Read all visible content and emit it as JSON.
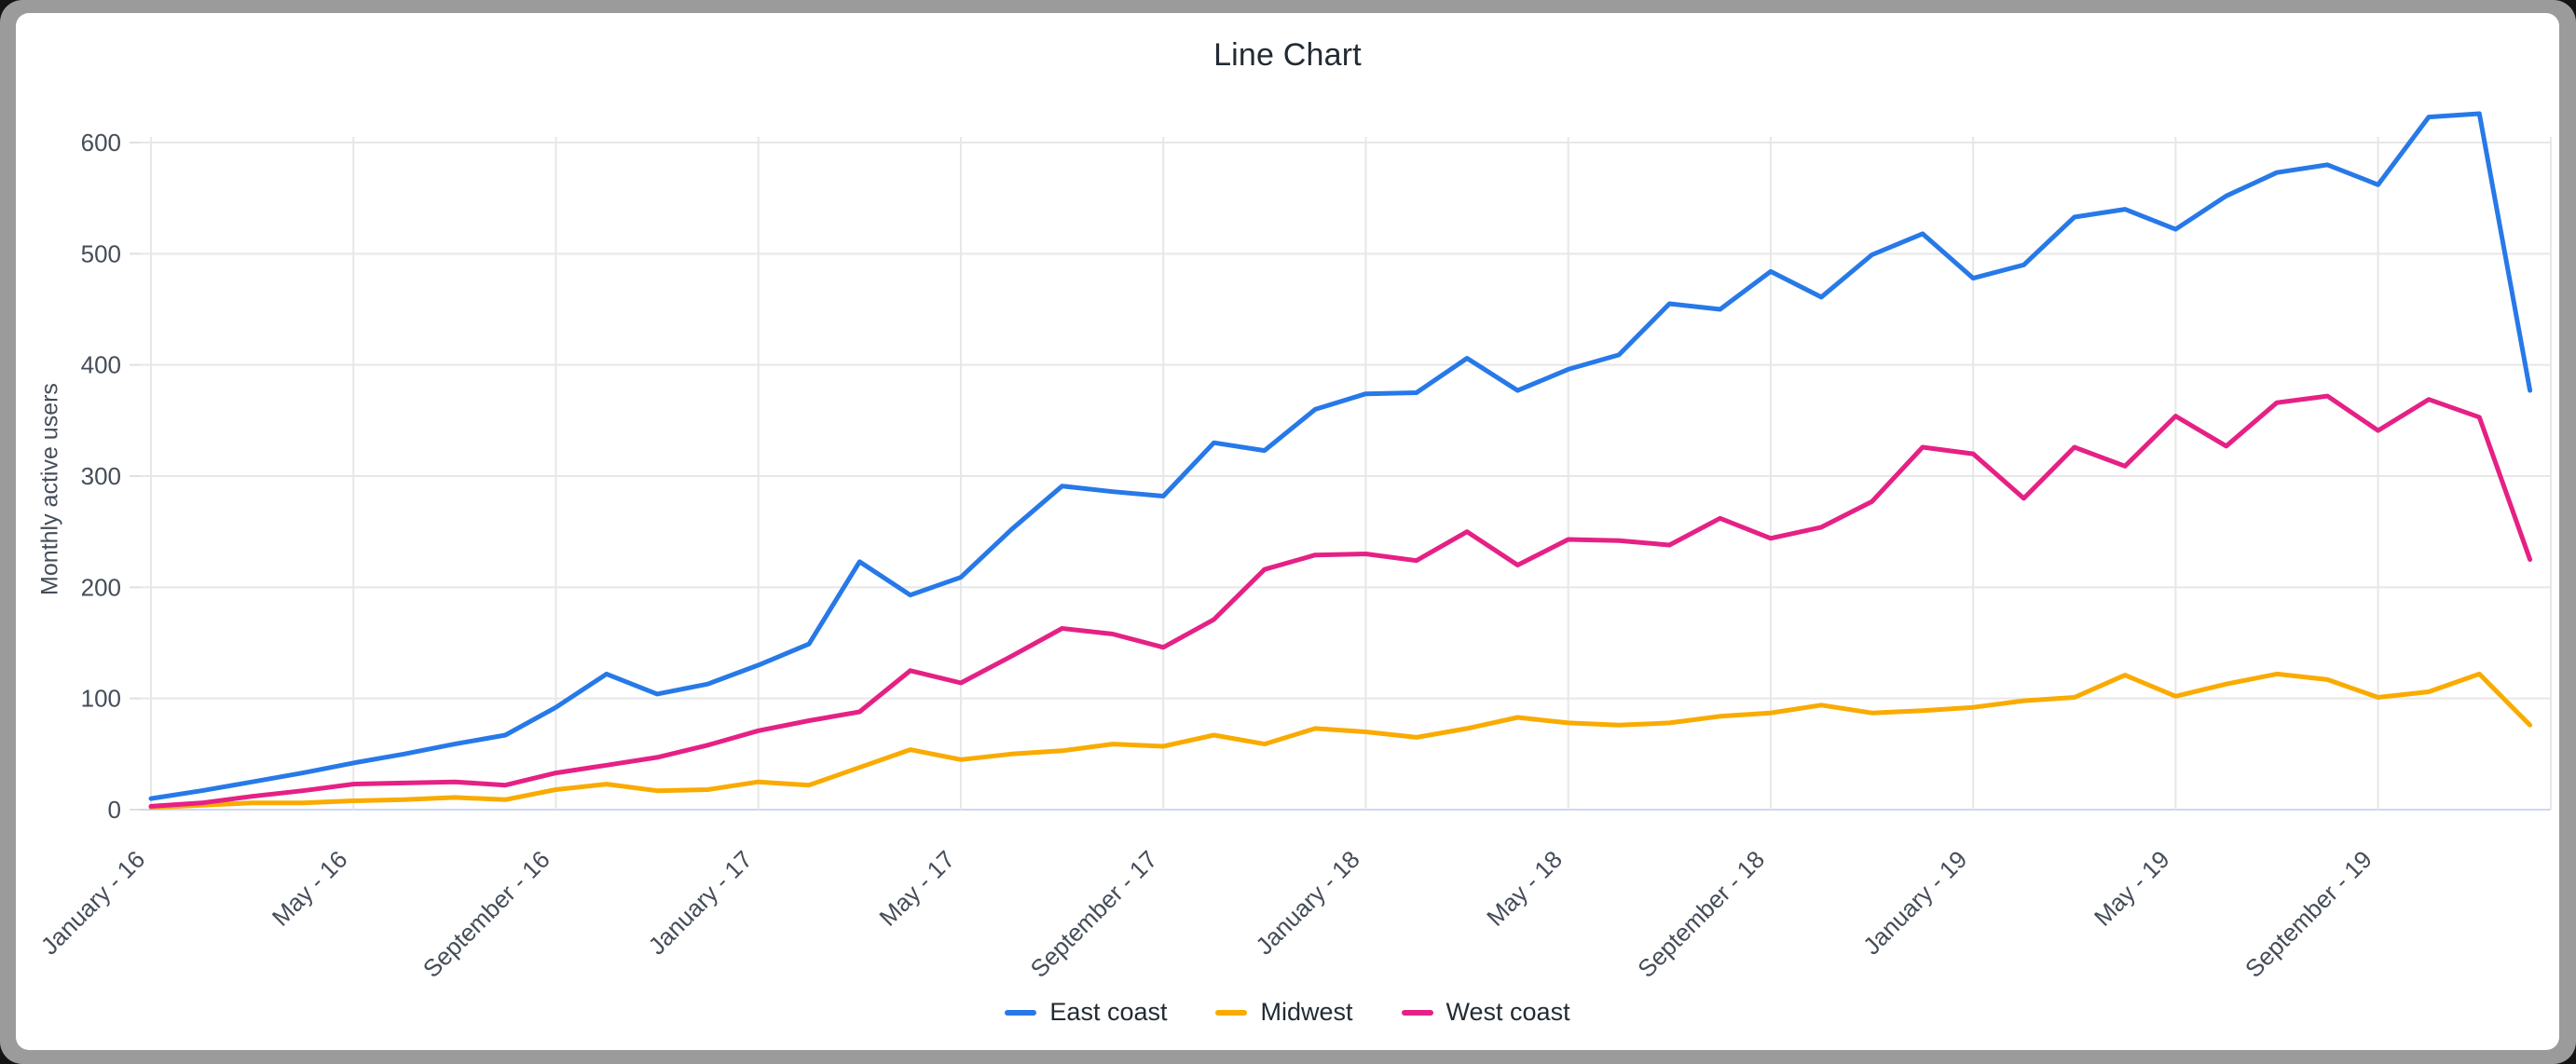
{
  "page": {
    "title": "Line Chart"
  },
  "chart_data": {
    "type": "line",
    "title": "Line Chart",
    "xlabel": "",
    "ylabel": "Monthly active users",
    "ylim": [
      0,
      650
    ],
    "yticks": [
      0,
      100,
      200,
      300,
      400,
      500,
      600
    ],
    "grid": true,
    "legend_position": "bottom",
    "x_tick_every": 4,
    "x_tick_labels": [
      "January - 16",
      "May - 16",
      "September - 16",
      "January - 17",
      "May - 17",
      "September - 17",
      "January - 18",
      "May - 18",
      "September - 18",
      "January - 19",
      "May - 19",
      "September - 19"
    ],
    "categories": [
      "January - 16",
      "February - 16",
      "March - 16",
      "April - 16",
      "May - 16",
      "June - 16",
      "July - 16",
      "August - 16",
      "September - 16",
      "October - 16",
      "November - 16",
      "December - 16",
      "January - 17",
      "February - 17",
      "March - 17",
      "April - 17",
      "May - 17",
      "June - 17",
      "July - 17",
      "August - 17",
      "September - 17",
      "October - 17",
      "November - 17",
      "December - 17",
      "January - 18",
      "February - 18",
      "March - 18",
      "April - 18",
      "May - 18",
      "June - 18",
      "July - 18",
      "August - 18",
      "September - 18",
      "October - 18",
      "November - 18",
      "December - 18",
      "January - 19",
      "February - 19",
      "March - 19",
      "April - 19",
      "May - 19",
      "June - 19",
      "July - 19",
      "August - 19",
      "September - 19",
      "October - 19",
      "November - 19",
      "December - 19"
    ],
    "series": [
      {
        "name": "East coast",
        "color": "#2779e8",
        "values": [
          10,
          17,
          25,
          33,
          42,
          50,
          59,
          67,
          92,
          122,
          104,
          113,
          130,
          149,
          223,
          193,
          209,
          252,
          291,
          286,
          282,
          330,
          323,
          360,
          374,
          375,
          406,
          377,
          396,
          409,
          455,
          450,
          484,
          461,
          499,
          518,
          478,
          490,
          533,
          540,
          522,
          552,
          573,
          580,
          562,
          623,
          626,
          377
        ]
      },
      {
        "name": "Midwest",
        "color": "#f9ab00",
        "values": [
          2,
          4,
          6,
          6,
          8,
          9,
          11,
          9,
          18,
          23,
          17,
          18,
          25,
          22,
          38,
          54,
          45,
          50,
          53,
          59,
          57,
          67,
          59,
          73,
          70,
          65,
          73,
          83,
          78,
          76,
          78,
          84,
          87,
          94,
          87,
          89,
          92,
          98,
          101,
          121,
          102,
          113,
          122,
          117,
          101,
          106,
          122,
          76
        ]
      },
      {
        "name": "West coast",
        "color": "#e52185",
        "values": [
          3,
          6,
          12,
          17,
          23,
          24,
          25,
          22,
          33,
          40,
          47,
          58,
          71,
          80,
          88,
          125,
          114,
          138,
          163,
          158,
          146,
          171,
          216,
          229,
          230,
          224,
          250,
          220,
          243,
          242,
          238,
          262,
          244,
          254,
          277,
          326,
          320,
          280,
          326,
          309,
          354,
          327,
          366,
          372,
          341,
          369,
          353,
          225
        ]
      }
    ],
    "colors": {
      "gridline": "#e7e7e7",
      "baseline": "#ccd9ee",
      "tick_stub": "#e0e0e0",
      "tick_text": "#454d59",
      "title_text": "#222b33"
    }
  }
}
